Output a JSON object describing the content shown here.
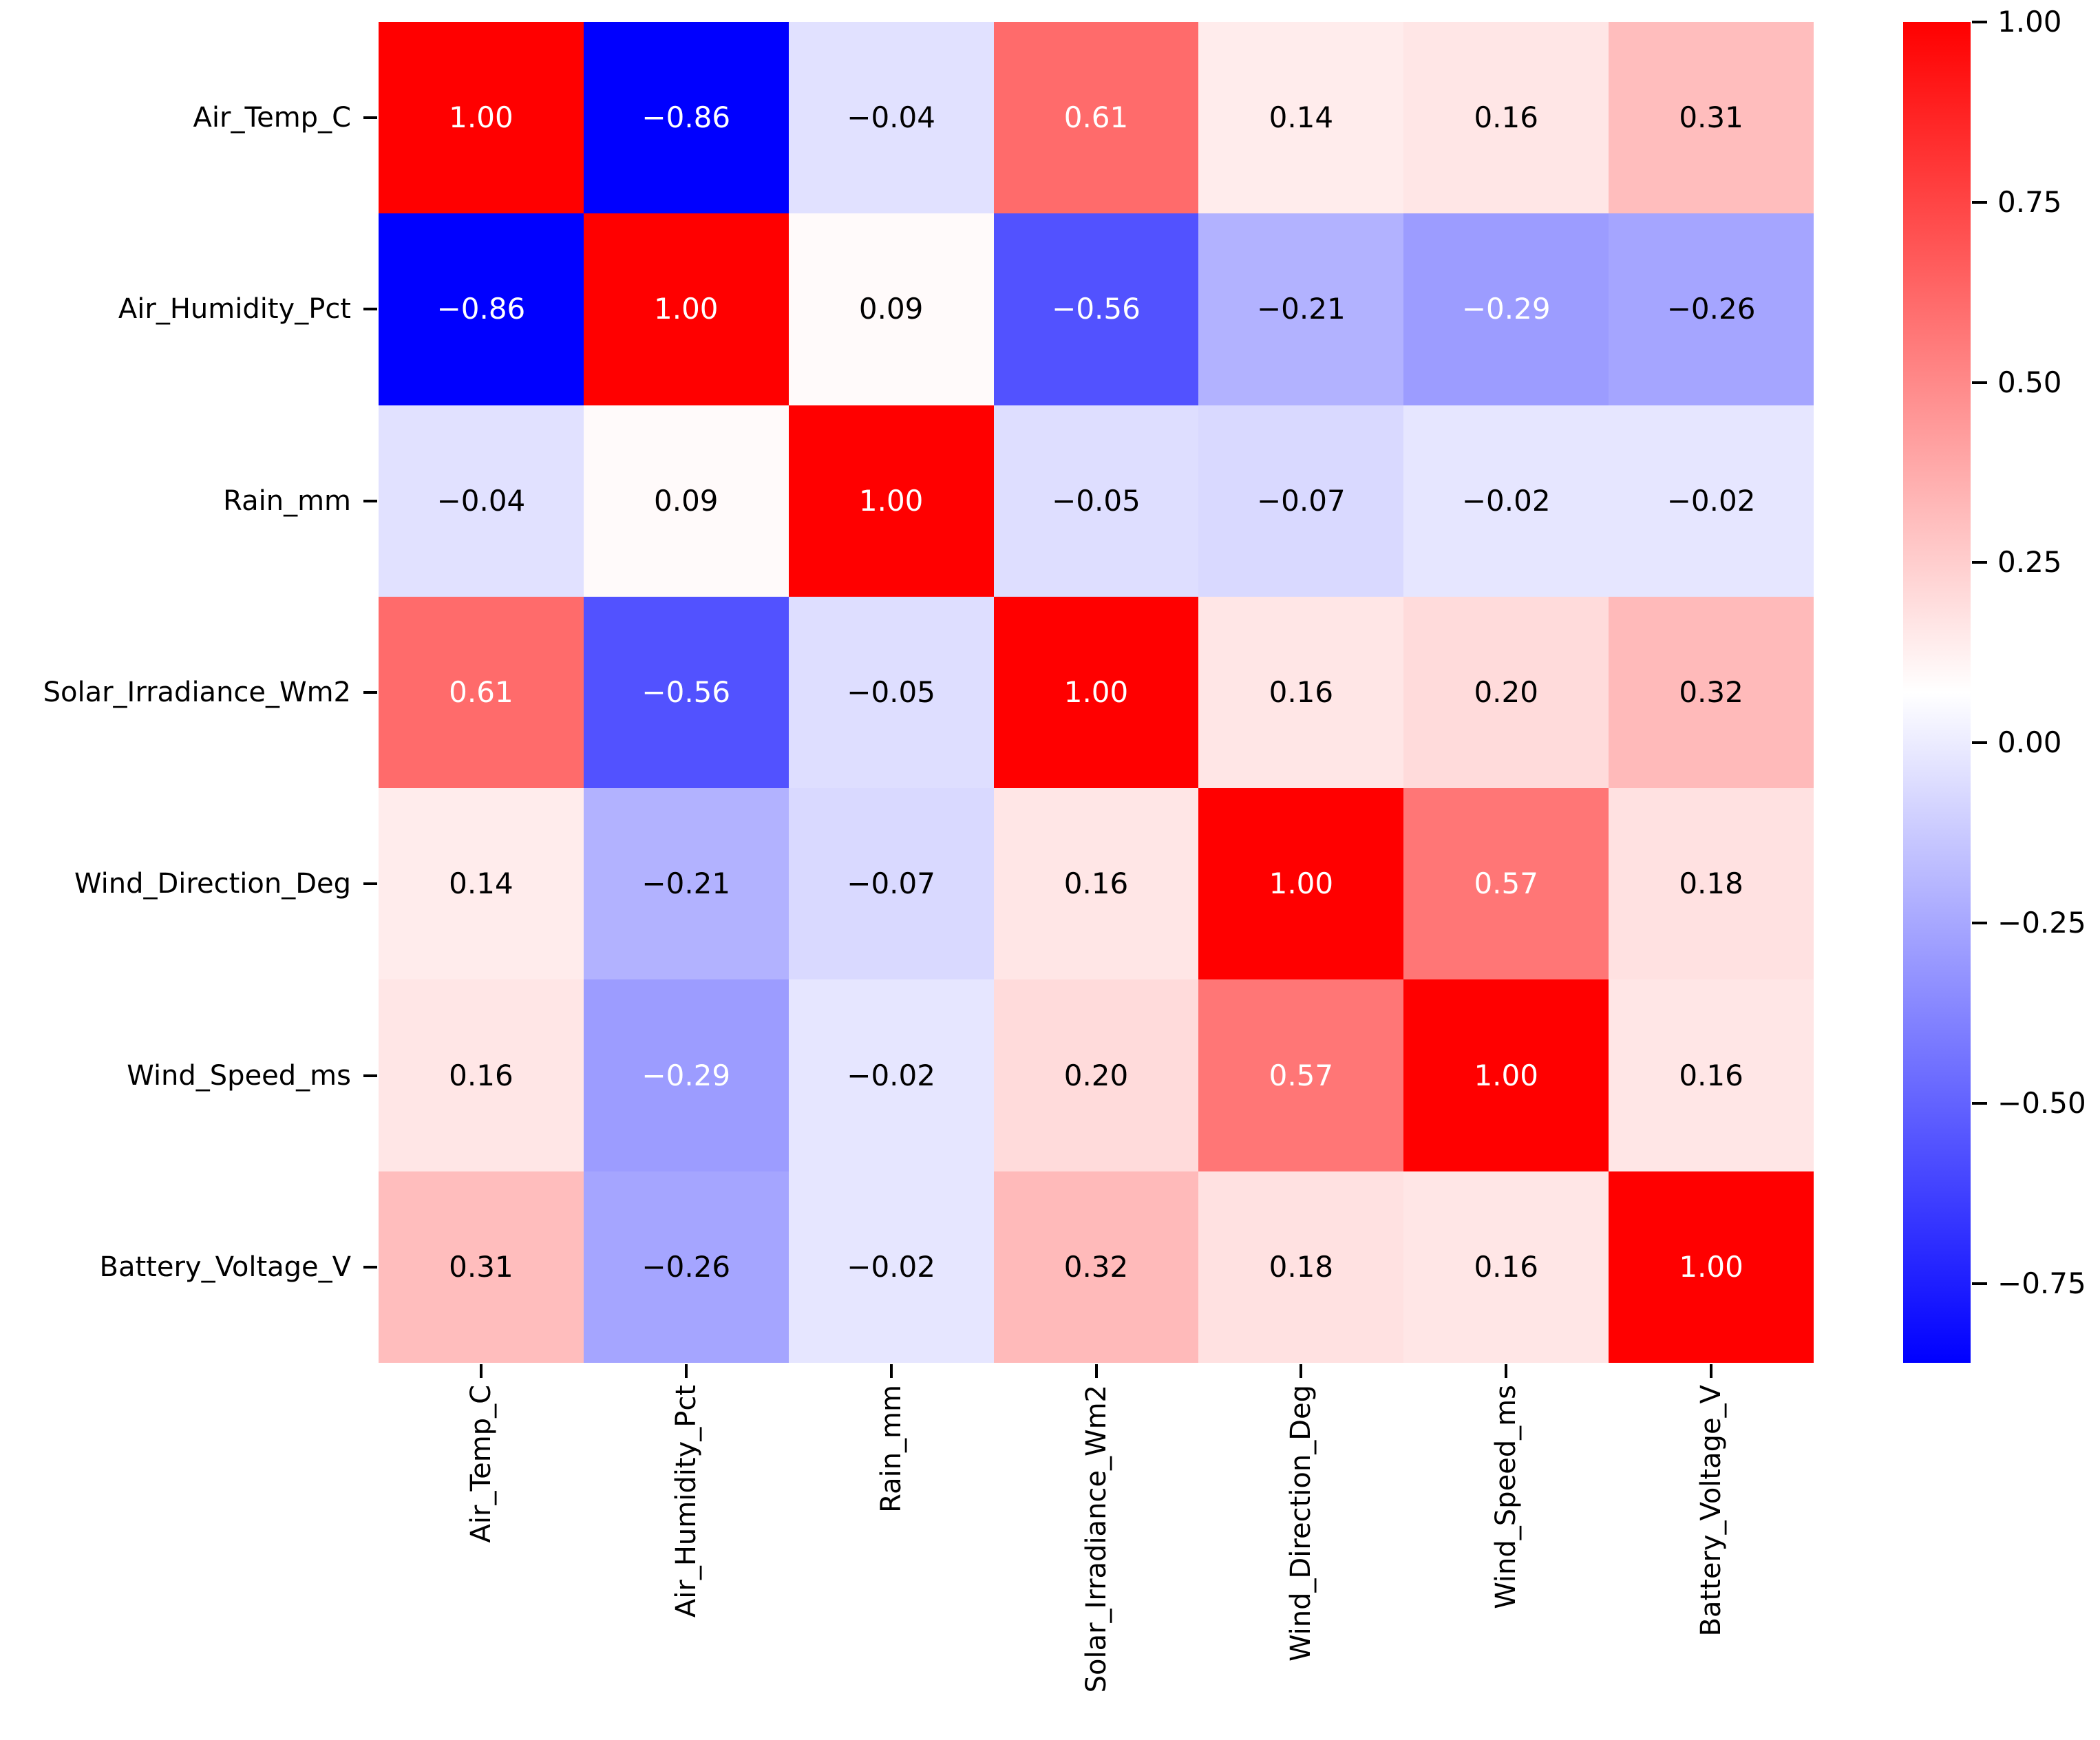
{
  "chart_data": {
    "type": "heatmap",
    "title": "",
    "categories": [
      "Air_Temp_C",
      "Air_Humidity_Pct",
      "Rain_mm",
      "Solar_Irradiance_Wm2",
      "Wind_Direction_Deg",
      "Wind_Speed_ms",
      "Battery_Voltage_V"
    ],
    "matrix": [
      [
        1.0,
        -0.86,
        -0.04,
        0.61,
        0.14,
        0.16,
        0.31
      ],
      [
        -0.86,
        1.0,
        0.09,
        -0.56,
        -0.21,
        -0.29,
        -0.26
      ],
      [
        -0.04,
        0.09,
        1.0,
        -0.05,
        -0.07,
        -0.02,
        -0.02
      ],
      [
        0.61,
        -0.56,
        -0.05,
        1.0,
        0.16,
        0.2,
        0.32
      ],
      [
        0.14,
        -0.21,
        -0.07,
        0.16,
        1.0,
        0.57,
        0.18
      ],
      [
        0.16,
        -0.29,
        -0.02,
        0.2,
        0.57,
        1.0,
        0.16
      ],
      [
        0.31,
        -0.26,
        -0.02,
        0.32,
        0.18,
        0.16,
        1.0
      ]
    ],
    "annotation_decimals": 2,
    "colormap": {
      "name": "bwr",
      "vmin": -0.86,
      "vmax": 1.0,
      "low_color": "#0000ff",
      "mid_color": "#ffffff",
      "high_color": "#ff0000",
      "annot_dark_color": "#000000",
      "annot_light_color": "#ffffff"
    },
    "colorbar": {
      "position": "right",
      "ticks": [
        1.0,
        0.75,
        0.5,
        0.25,
        0.0,
        -0.25,
        -0.5,
        -0.75
      ]
    },
    "x_tick_rotation": 90,
    "grid": false,
    "legend": false
  }
}
